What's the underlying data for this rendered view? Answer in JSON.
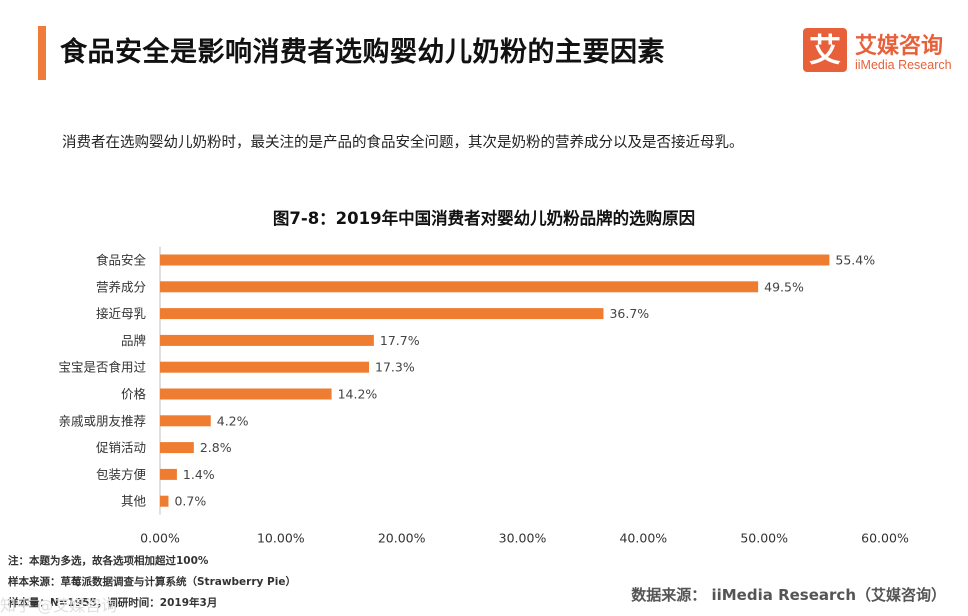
{
  "header": {
    "title": "食品安全是影响消费者选购婴幼儿奶粉的主要因素",
    "logo_glyph": "艾",
    "logo_cn": "艾媒咨询",
    "logo_en": "iiMedia Research"
  },
  "subtitle": "消费者在选购婴幼儿奶粉时，最关注的是产品的食品安全问题，其次是奶粉的营养成分以及是否接近母乳。",
  "colors": {
    "accent": "#f07c3c",
    "bar": "#ee7d31",
    "logo": "#e8603a"
  },
  "chart_data": {
    "type": "bar",
    "orientation": "horizontal",
    "title": "图7-8：2019年中国消费者对婴幼儿奶粉品牌的选购原因",
    "categories": [
      "食品安全",
      "营养成分",
      "接近母乳",
      "品牌",
      "宝宝是否食用过",
      "价格",
      "亲戚或朋友推荐",
      "促销活动",
      "包装方便",
      "其他"
    ],
    "values": [
      55.4,
      49.5,
      36.7,
      17.7,
      17.3,
      14.2,
      4.2,
      2.8,
      1.4,
      0.7
    ],
    "data_labels": [
      "55.4%",
      "49.5%",
      "36.7%",
      "17.7%",
      "17.3%",
      "14.2%",
      "4.2%",
      "2.8%",
      "1.4%",
      "0.7%"
    ],
    "xlim": [
      0,
      60
    ],
    "x_ticks": [
      "0.00%",
      "10.00%",
      "20.00%",
      "30.00%",
      "40.00%",
      "50.00%",
      "60.00%"
    ],
    "grid": false,
    "legend": "none"
  },
  "footer": {
    "note": "注：本题为多选，故各选项相加超过100%",
    "sample_source": "样本来源：草莓派数据调查与计算系统（Strawberry  Pie）",
    "sample_size": "样本量：N=1955，调研时间：2019年3月",
    "data_source": "数据来源：  iiMedia Research（艾媒咨询）",
    "watermark": "知乎 @艾媒咨询"
  }
}
